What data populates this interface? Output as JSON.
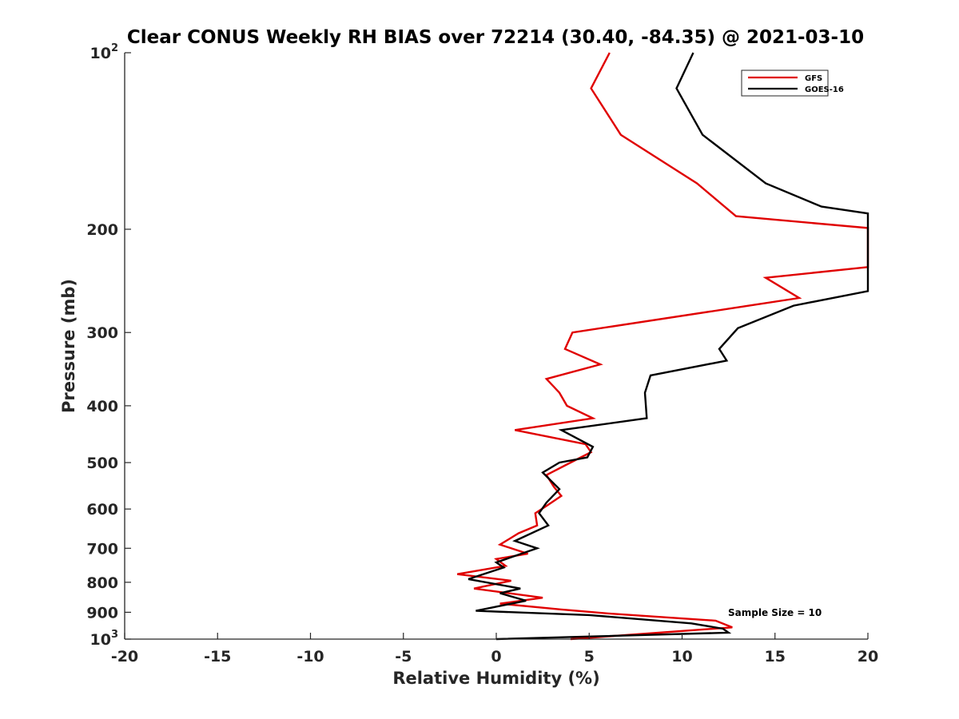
{
  "chart_data": {
    "type": "line",
    "title": "Clear CONUS Weekly RH BIAS over 72214 (30.40, -84.35) @ 2021-03-10",
    "xlabel": "Relative Humidity (%)",
    "ylabel": "Pressure (mb)",
    "xlim": [
      -20,
      20
    ],
    "ylim": [
      100,
      1000
    ],
    "yscale": "log",
    "yreversed": true,
    "x_ticks": [
      -20,
      -15,
      -10,
      -5,
      0,
      5,
      10,
      15,
      20
    ],
    "x_tick_labels": [
      "-20",
      "-15",
      "-10",
      "-5",
      "0",
      "5",
      "10",
      "15",
      "20"
    ],
    "y_ticks": [
      100,
      200,
      300,
      400,
      500,
      600,
      700,
      800,
      900,
      1000
    ],
    "y_tick_labels": [
      {
        "base": "10",
        "exp": "2"
      },
      {
        "base": "200",
        "exp": ""
      },
      {
        "base": "300",
        "exp": ""
      },
      {
        "base": "400",
        "exp": ""
      },
      {
        "base": "500",
        "exp": ""
      },
      {
        "base": "600",
        "exp": ""
      },
      {
        "base": "700",
        "exp": ""
      },
      {
        "base": "800",
        "exp": ""
      },
      {
        "base": "900",
        "exp": ""
      },
      {
        "base": "10",
        "exp": "3"
      }
    ],
    "legend_position": "top-right",
    "annotation": "Sample Size = 10",
    "series": [
      {
        "name": "GFS",
        "color": "#e00000",
        "points": [
          [
            6.1,
            100
          ],
          [
            5.1,
            115
          ],
          [
            6.7,
            138
          ],
          [
            10.8,
            167
          ],
          [
            12.9,
            190
          ],
          [
            20.0,
            199
          ],
          [
            20.0,
            232
          ],
          [
            14.5,
            242
          ],
          [
            16.3,
            262
          ],
          [
            4.1,
            300
          ],
          [
            3.7,
            320
          ],
          [
            5.6,
            340
          ],
          [
            2.7,
            360
          ],
          [
            3.4,
            380
          ],
          [
            3.8,
            400
          ],
          [
            5.2,
            420
          ],
          [
            1.0,
            440
          ],
          [
            4.8,
            465
          ],
          [
            5.1,
            480
          ],
          [
            4.0,
            500
          ],
          [
            2.7,
            525
          ],
          [
            3.1,
            550
          ],
          [
            3.5,
            570
          ],
          [
            2.8,
            590
          ],
          [
            2.1,
            610
          ],
          [
            2.2,
            640
          ],
          [
            1.2,
            660
          ],
          [
            0.2,
            690
          ],
          [
            1.7,
            715
          ],
          [
            0.0,
            730
          ],
          [
            0.5,
            750
          ],
          [
            -2.1,
            775
          ],
          [
            0.8,
            795
          ],
          [
            -1.2,
            820
          ],
          [
            2.5,
            850
          ],
          [
            0.2,
            870
          ],
          [
            3.5,
            890
          ],
          [
            6.2,
            905
          ],
          [
            11.8,
            930
          ],
          [
            12.7,
            955
          ],
          [
            4.0,
            1000
          ]
        ]
      },
      {
        "name": "GOES-16",
        "color": "#000000",
        "points": [
          [
            10.6,
            100
          ],
          [
            9.7,
            115
          ],
          [
            11.1,
            138
          ],
          [
            14.5,
            167
          ],
          [
            17.5,
            183
          ],
          [
            20.0,
            188
          ],
          [
            20.0,
            255
          ],
          [
            16.0,
            270
          ],
          [
            13.0,
            295
          ],
          [
            12.0,
            320
          ],
          [
            12.4,
            335
          ],
          [
            8.3,
            355
          ],
          [
            8.0,
            380
          ],
          [
            8.1,
            420
          ],
          [
            3.5,
            440
          ],
          [
            5.2,
            470
          ],
          [
            4.9,
            490
          ],
          [
            3.4,
            500
          ],
          [
            2.5,
            520
          ],
          [
            3.4,
            555
          ],
          [
            2.7,
            585
          ],
          [
            2.3,
            610
          ],
          [
            2.8,
            640
          ],
          [
            1.0,
            680
          ],
          [
            2.2,
            700
          ],
          [
            0.0,
            740
          ],
          [
            0.4,
            755
          ],
          [
            -1.5,
            790
          ],
          [
            1.3,
            820
          ],
          [
            0.2,
            835
          ],
          [
            1.6,
            860
          ],
          [
            -1.1,
            895
          ],
          [
            5.0,
            910
          ],
          [
            10.5,
            940
          ],
          [
            12.2,
            960
          ],
          [
            12.5,
            975
          ],
          [
            0.0,
            1000
          ]
        ]
      }
    ]
  }
}
